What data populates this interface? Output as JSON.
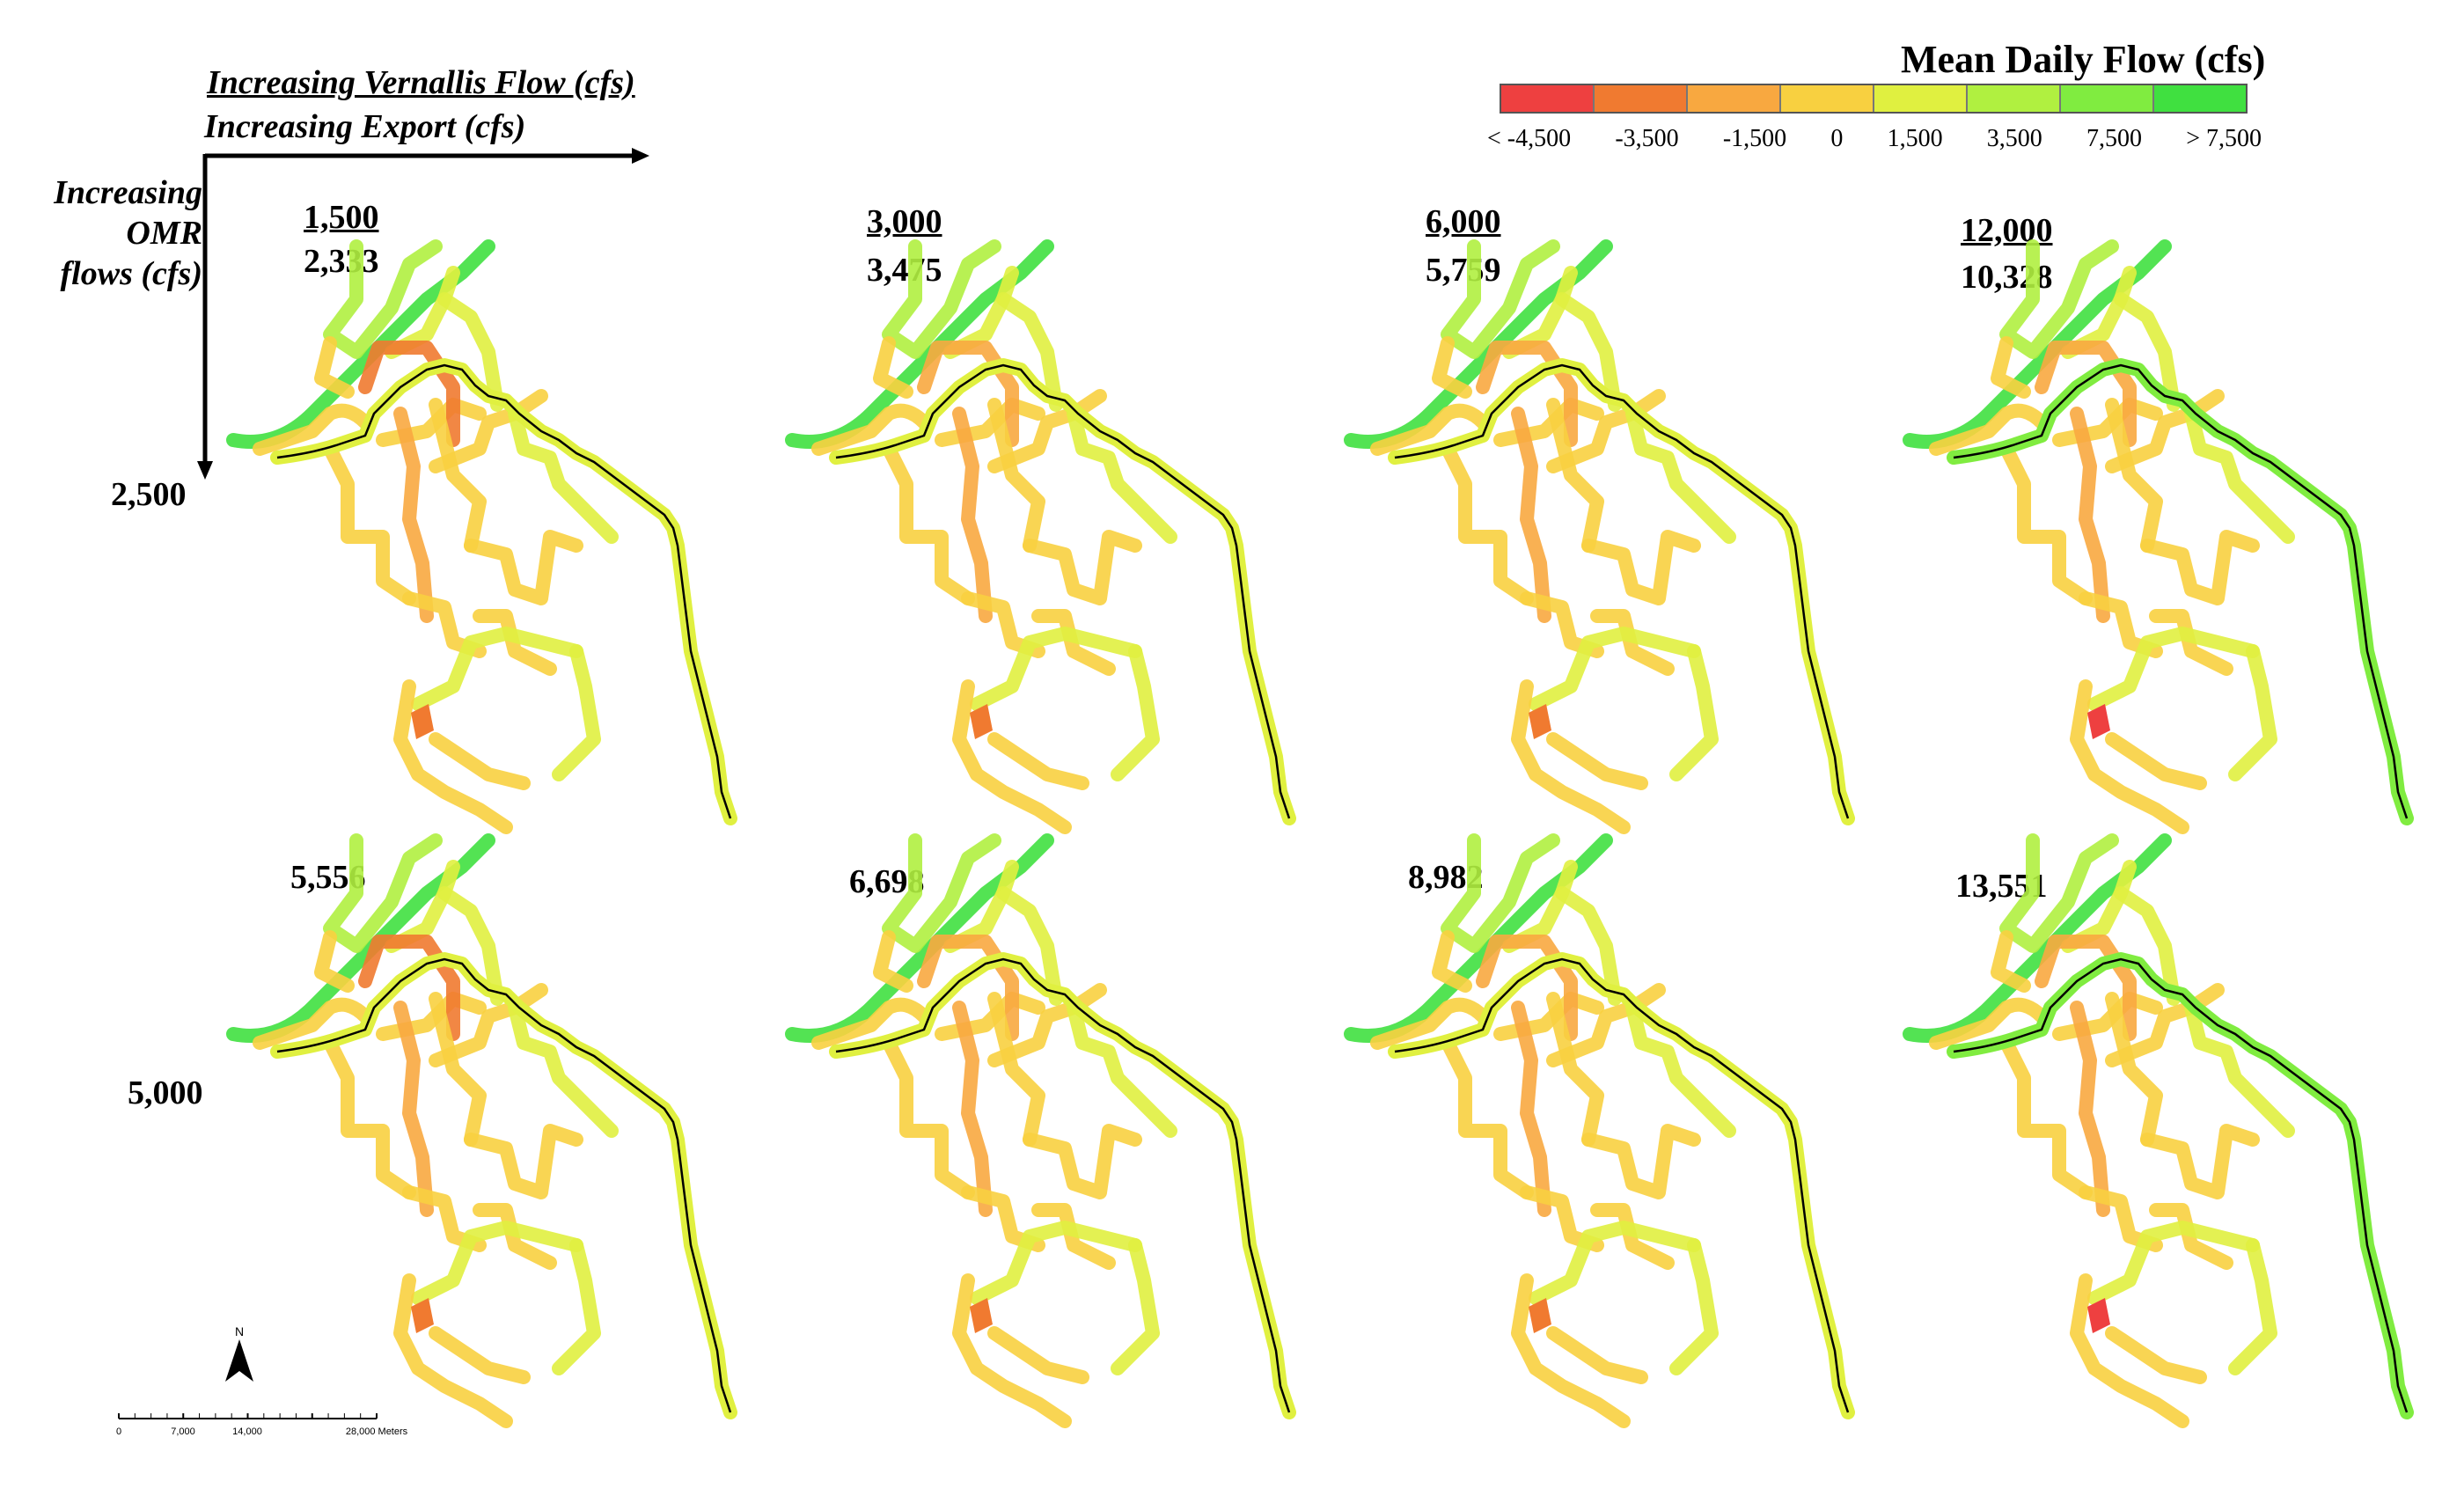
{
  "axes": {
    "vernalis_title": "Increasing Vernallis Flow (cfs)",
    "export_title": "Increasing Export (cfs)",
    "omr_title_lines": [
      "Increasing",
      "OMR",
      "flows (cfs)"
    ]
  },
  "legend": {
    "title": "Mean Daily Flow (cfs)",
    "colors": [
      "#ee4040",
      "#f07a30",
      "#f8a840",
      "#f8d040",
      "#e0f040",
      "#b0f040",
      "#80ec40",
      "#40e040"
    ],
    "ticks": [
      "< -4,500",
      "-3,500",
      "-1,500",
      "0",
      "1,500",
      "3,500",
      "7,500",
      "> 7,500"
    ]
  },
  "rows": [
    {
      "omr": "2,500"
    },
    {
      "omr": "5,000"
    }
  ],
  "panels": [
    {
      "vernalis": "1,500",
      "export": "2,333"
    },
    {
      "vernalis": "3,000",
      "export": "3,475"
    },
    {
      "vernalis": "6,000",
      "export": "5,759"
    },
    {
      "vernalis": "12,000",
      "export": "10,328"
    },
    {
      "export": "5,556"
    },
    {
      "export": "6,698"
    },
    {
      "export": "8,982"
    },
    {
      "export": "13,551"
    }
  ],
  "scale_bar": {
    "north_label": "N",
    "ticks": [
      "0",
      "7,000",
      "14,000",
      "28,000 Meters"
    ]
  }
}
